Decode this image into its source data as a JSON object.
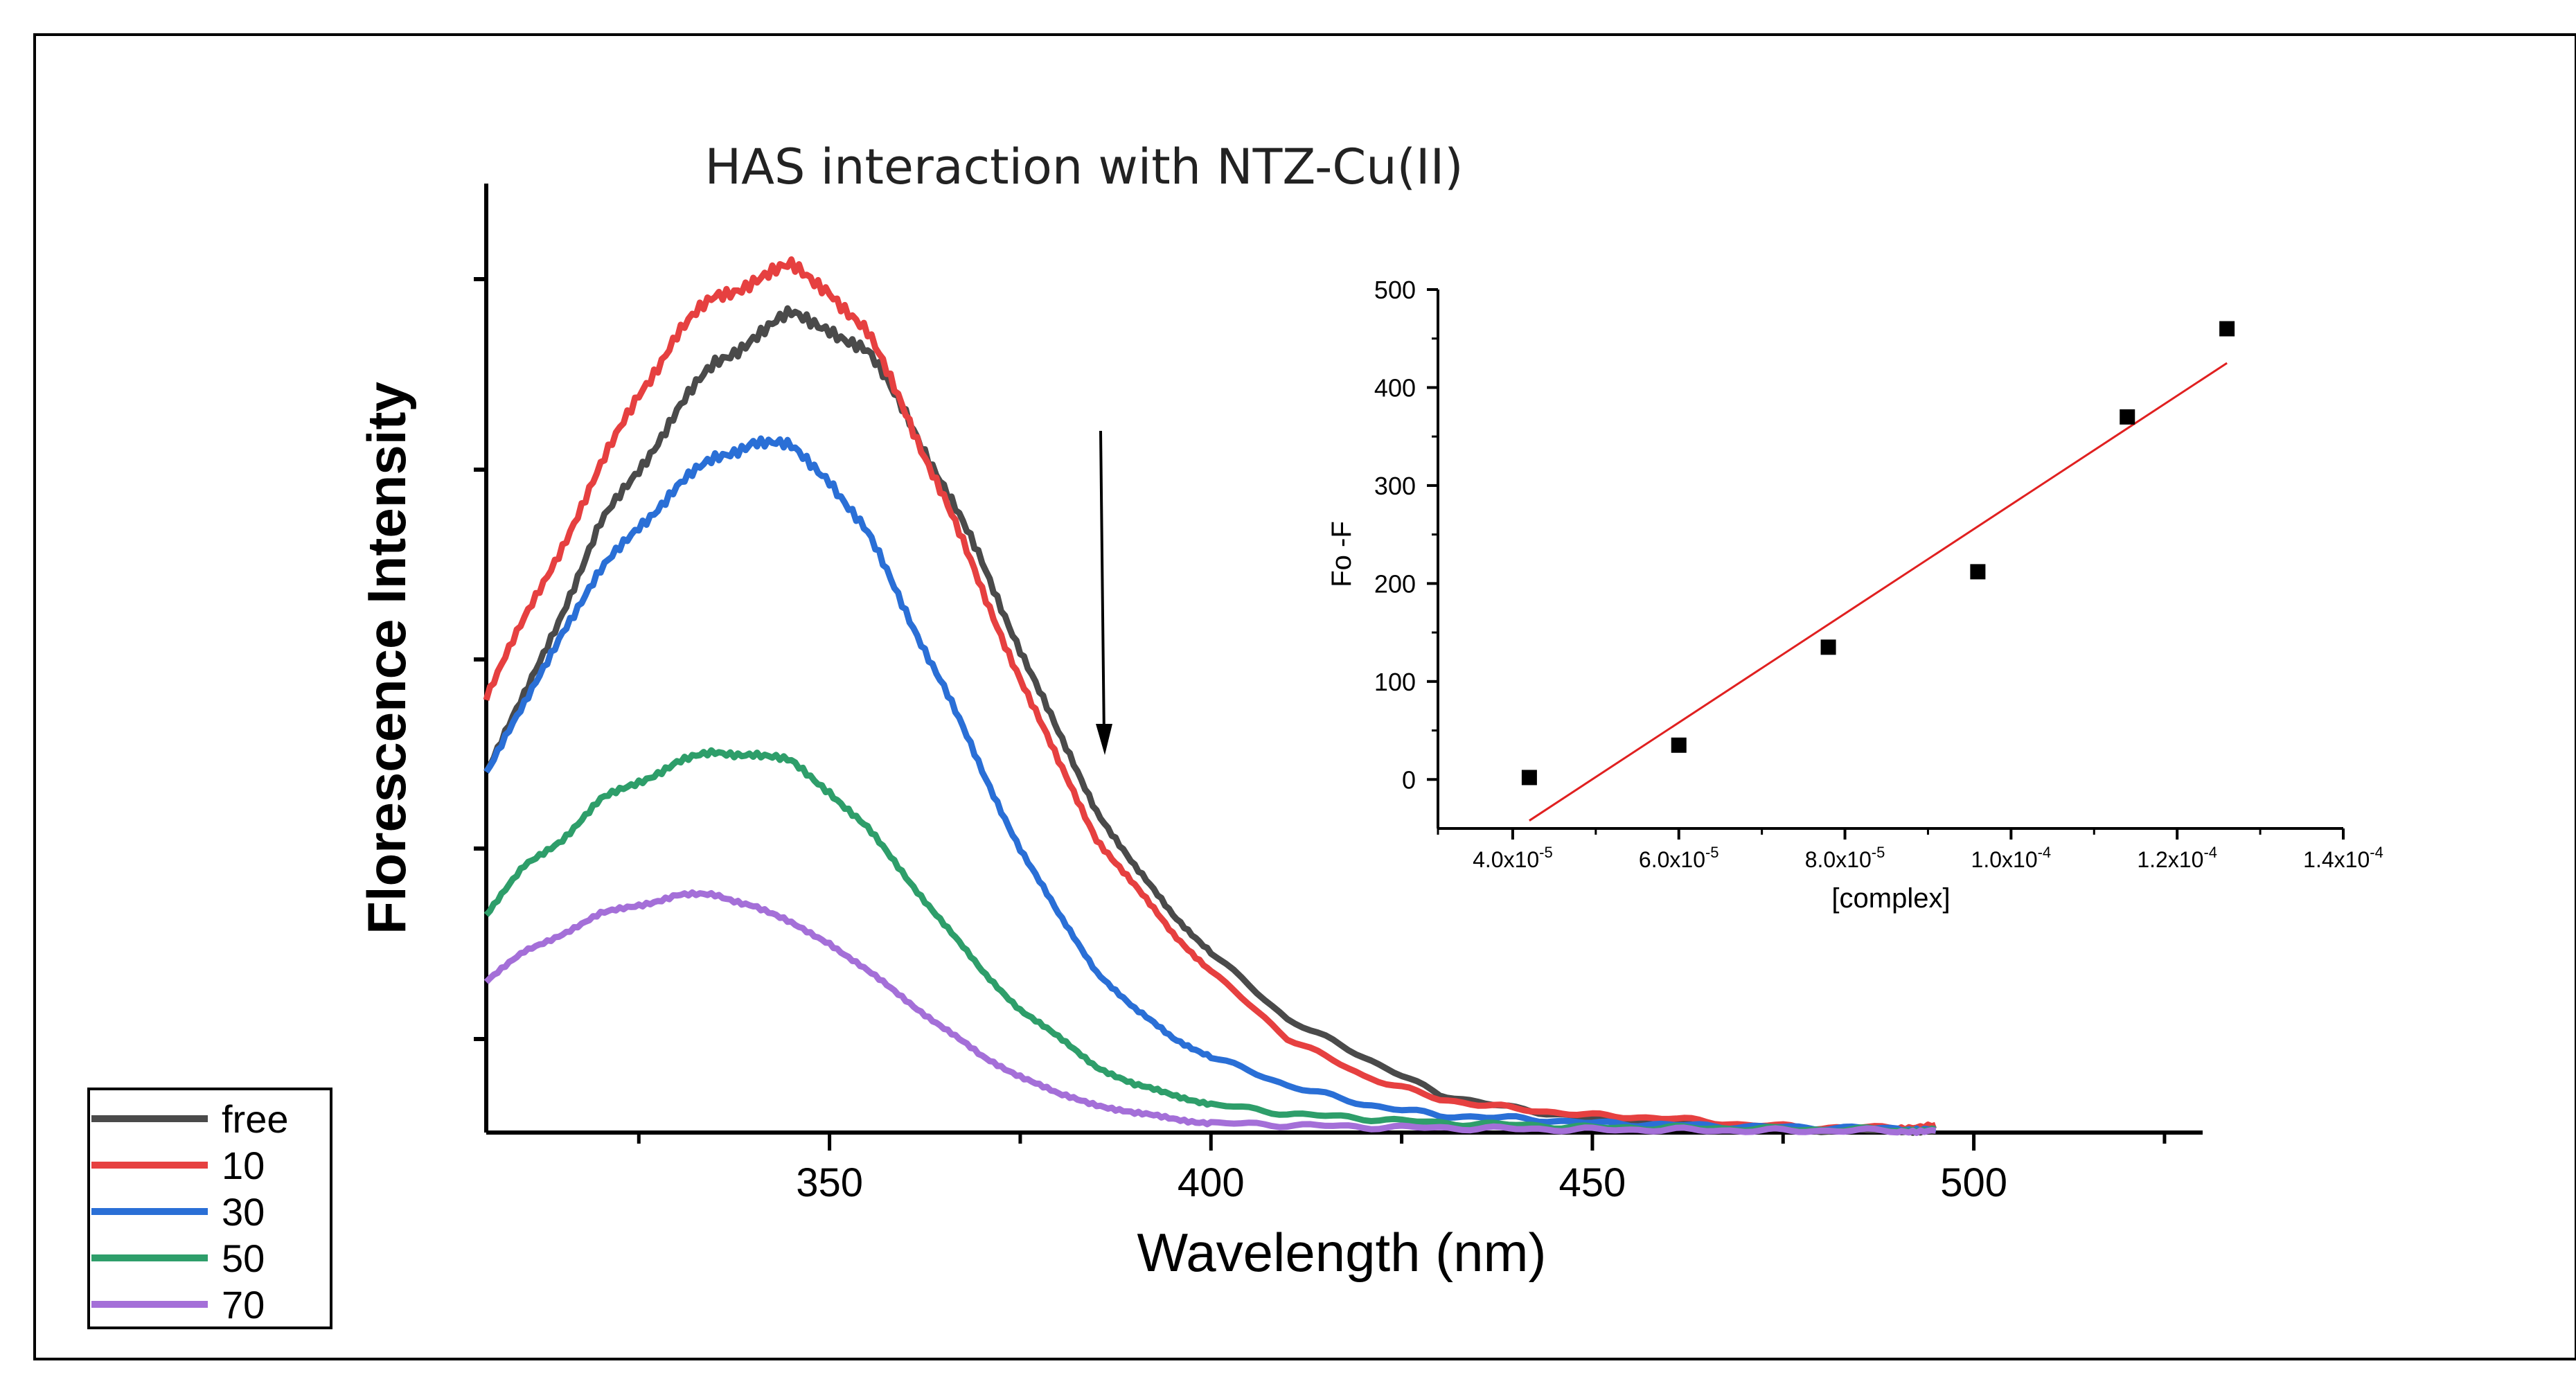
{
  "chart_data": [
    {
      "type": "line",
      "title": "HAS interaction with NTZ-Cu(II)",
      "xlabel": "Wavelength (nm)",
      "ylabel": "Florescence Intensity",
      "xlim": [
        305,
        530
      ],
      "ylim": [
        0,
        100
      ],
      "x_ticks": [
        350,
        400,
        450,
        500
      ],
      "x_tick_labels": [
        "350",
        "400",
        "450",
        "500"
      ],
      "y_tick_labels_shown": false,
      "annotation": "downward arrow indicating quenching with increasing concentration",
      "legend": {
        "placement": "bottom-left",
        "entries": [
          "free",
          "10",
          "30",
          "50",
          "70"
        ]
      },
      "series": [
        {
          "name": "free",
          "color": "#4a4a4a",
          "x": [
            305,
            310,
            315,
            320,
            325,
            330,
            335,
            340,
            345,
            350,
            355,
            360,
            365,
            370,
            375,
            380,
            385,
            390,
            395,
            400,
            410,
            420,
            430,
            440,
            450,
            460,
            470,
            480,
            490,
            495
          ],
          "y": [
            38,
            46,
            55,
            64,
            70,
            76,
            81,
            84,
            86,
            85,
            82,
            76,
            68,
            60,
            51,
            42,
            34,
            28,
            23,
            19,
            12,
            8,
            4,
            2.5,
            1.5,
            1,
            0.5,
            0.3,
            0.2,
            0.2
          ]
        },
        {
          "name": "10",
          "color": "#e64040",
          "x": [
            305,
            310,
            315,
            320,
            325,
            330,
            335,
            340,
            345,
            350,
            355,
            360,
            365,
            370,
            375,
            380,
            385,
            390,
            395,
            400,
            410,
            420,
            430,
            440,
            450,
            460,
            470,
            480,
            490,
            495
          ],
          "y": [
            46,
            54,
            62,
            70,
            78,
            84,
            88,
            90,
            91,
            89,
            84,
            76,
            67,
            57,
            48,
            39,
            31,
            26,
            21,
            17,
            10,
            6,
            3.5,
            2.5,
            1.8,
            1.5,
            0.8,
            0.5,
            0.5,
            0.8
          ]
        },
        {
          "name": "30",
          "color": "#2a6fd6",
          "x": [
            305,
            310,
            315,
            320,
            325,
            330,
            335,
            340,
            345,
            350,
            355,
            360,
            365,
            370,
            375,
            380,
            385,
            390,
            395,
            400,
            410,
            420,
            430,
            440,
            450,
            460,
            470,
            480,
            490,
            495
          ],
          "y": [
            38,
            45,
            53,
            59,
            64,
            68,
            71,
            73,
            72,
            69,
            63,
            55,
            47,
            38,
            30,
            23,
            17,
            13,
            10,
            8,
            5,
            3,
            1.8,
            1.5,
            1,
            0.8,
            0.6,
            0.5,
            0.4,
            0.4
          ]
        },
        {
          "name": "50",
          "color": "#2e9e6a",
          "x": [
            305,
            310,
            315,
            320,
            325,
            330,
            335,
            340,
            345,
            350,
            355,
            360,
            365,
            370,
            375,
            380,
            385,
            390,
            395,
            400,
            410,
            420,
            430,
            440,
            450,
            460,
            470,
            480,
            490,
            495
          ],
          "y": [
            23,
            28,
            31,
            35,
            37,
            39,
            40,
            40,
            39,
            36,
            32,
            27,
            22,
            17,
            13,
            10,
            7,
            5,
            4,
            3,
            2,
            1.5,
            1,
            0.8,
            0.5,
            0.5,
            0.4,
            0.3,
            0.3,
            0.3
          ]
        },
        {
          "name": "70",
          "color": "#a46fd8",
          "x": [
            305,
            310,
            315,
            320,
            325,
            330,
            335,
            340,
            345,
            350,
            355,
            360,
            365,
            370,
            375,
            380,
            385,
            390,
            395,
            400,
            410,
            420,
            430,
            440,
            450,
            460,
            470,
            480,
            490,
            495
          ],
          "y": [
            16,
            19,
            21,
            23,
            24,
            25,
            25,
            24,
            22,
            20,
            17,
            14,
            11,
            8,
            6,
            4,
            3,
            2,
            1.5,
            1,
            0.8,
            0.6,
            0.5,
            0.4,
            0.3,
            0.3,
            0.2,
            0.2,
            0.2,
            0.2
          ]
        }
      ]
    },
    {
      "type": "scatter",
      "title": "",
      "xlabel": "[complex]",
      "ylabel": "Fo -F",
      "xlim": [
        3.1e-05,
        0.00014
      ],
      "ylim": [
        -50,
        500
      ],
      "x_ticks": [
        4e-05,
        6e-05,
        8e-05,
        0.0001,
        0.00012,
        0.00014
      ],
      "x_tick_labels": [
        {
          "mantissa": "4.0x10",
          "exp": "-5"
        },
        {
          "mantissa": "6.0x10",
          "exp": "-5"
        },
        {
          "mantissa": "8.0x10",
          "exp": "-5"
        },
        {
          "mantissa": "1.0x10",
          "exp": "-4"
        },
        {
          "mantissa": "1.2x10",
          "exp": "-4"
        },
        {
          "mantissa": "1.4x10",
          "exp": "-4"
        }
      ],
      "y_ticks": [
        0,
        100,
        200,
        300,
        400,
        500
      ],
      "y_tick_labels": [
        "0",
        "100",
        "200",
        "300",
        "400",
        "500"
      ],
      "points": {
        "x": [
          4.2e-05,
          6e-05,
          7.8e-05,
          9.6e-05,
          0.000114,
          0.000126
        ],
        "y": [
          2,
          35,
          135,
          212,
          370,
          460
        ]
      },
      "fit_line": {
        "x": [
          4.2e-05,
          0.000126
        ],
        "y": [
          -42,
          425
        ],
        "color": "#e02020"
      },
      "marker_color": "#000000"
    }
  ]
}
